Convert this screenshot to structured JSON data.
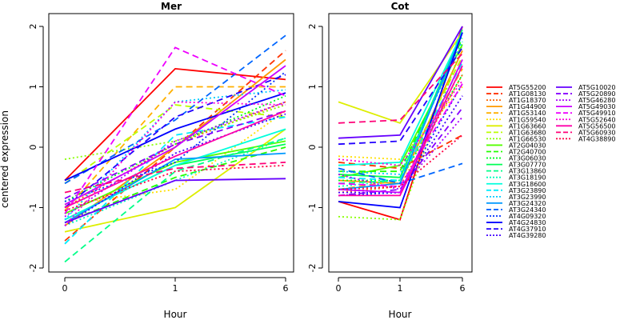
{
  "chart_data": {
    "type": "line",
    "ylabel": "centered expression",
    "xlabel": "Hour",
    "x": [
      "0",
      "1",
      "6"
    ],
    "ylim": [
      -2,
      2
    ],
    "yticks": [
      -2,
      -1,
      0,
      1,
      2
    ],
    "panels": [
      {
        "title": "Mer",
        "xlabel": "Hour",
        "values": {
          "AT5G55200": [
            -0.55,
            1.3,
            1.12
          ],
          "AT1G08130": [
            -1.55,
            0.0,
            1.6
          ],
          "AT1G18370": [
            -1.0,
            0.05,
            0.75
          ],
          "AT1G44900": [
            -1.3,
            0.0,
            1.45
          ],
          "AT1G53140": [
            -1.05,
            1.0,
            1.0
          ],
          "AT1G59540": [
            -0.95,
            -0.7,
            0.6
          ],
          "AT1G63660": [
            -1.4,
            -1.0,
            0.3
          ],
          "AT1G63680": [
            -0.6,
            0.7,
            0.5
          ],
          "AT1G66530": [
            -0.2,
            0.1,
            0.7
          ],
          "AT2G04030": [
            -1.1,
            -0.25,
            0.1
          ],
          "AT2G40700": [
            -1.25,
            -0.5,
            0.0
          ],
          "AT3G06030": [
            -0.9,
            0.05,
            0.85
          ],
          "AT3G07770": [
            -1.2,
            -0.3,
            0.05
          ],
          "AT3G13860": [
            -1.9,
            -0.4,
            0.15
          ],
          "AT3G18190": [
            -1.3,
            -0.55,
            0.15
          ],
          "AT3G18600": [
            -1.2,
            -0.3,
            0.3
          ],
          "AT3G23890": [
            -1.6,
            0.2,
            0.5
          ],
          "AT3G23990": [
            -1.2,
            0.75,
            0.95
          ],
          "AT3G24320": [
            -1.25,
            -0.2,
            -0.1
          ],
          "AT3G24340": [
            -0.6,
            0.45,
            1.85
          ],
          "AT4G09320": [
            -0.9,
            -0.25,
            1.25
          ],
          "AT4G24830": [
            -0.55,
            0.3,
            0.9
          ],
          "AT4G37910": [
            -1.0,
            0.5,
            1.2
          ],
          "AT4G39280": [
            -1.3,
            -0.1,
            0.55
          ],
          "AT5G10020": [
            -1.25,
            -0.55,
            -0.52
          ],
          "AT5G20890": [
            -0.85,
            0.05,
            0.6
          ],
          "AT5G46280": [
            -1.15,
            0.1,
            0.75
          ],
          "AT5G49030": [
            -0.95,
            0.0,
            1.35
          ],
          "AT5G49910": [
            -1.1,
            1.65,
            0.85
          ],
          "AT5G52640": [
            -1.3,
            0.75,
            0.7
          ],
          "AT5G56500": [
            -1.0,
            -0.15,
            0.6
          ],
          "AT5G60930": [
            -0.75,
            -0.35,
            -0.25
          ],
          "AT4G38890": [
            -1.05,
            -0.4,
            -0.3
          ]
        }
      },
      {
        "title": "Cot",
        "xlabel": "Hour",
        "values": {
          "AT5G55200": [
            -0.9,
            -1.2,
            2.0
          ],
          "AT1G08130": [
            -0.25,
            -0.35,
            0.2
          ],
          "AT1G18370": [
            -0.75,
            -0.65,
            1.2
          ],
          "AT1G44900": [
            -0.55,
            -0.6,
            1.6
          ],
          "AT1G53140": [
            -0.7,
            -0.55,
            1.3
          ],
          "AT1G59540": [
            -0.15,
            -0.2,
            1.0
          ],
          "AT1G63660": [
            0.75,
            0.4,
            1.9
          ],
          "AT1G63680": [
            -0.45,
            -0.5,
            1.5
          ],
          "AT1G66530": [
            -1.15,
            -1.2,
            1.7
          ],
          "AT2G04030": [
            -0.5,
            -0.3,
            1.7
          ],
          "AT2G40700": [
            -0.4,
            -0.4,
            1.8
          ],
          "AT3G06030": [
            -0.55,
            -0.55,
            1.2
          ],
          "AT3G07770": [
            -0.45,
            -0.5,
            1.9
          ],
          "AT3G13860": [
            -0.6,
            -0.55,
            1.95
          ],
          "AT3G18190": [
            -0.65,
            -0.55,
            1.85
          ],
          "AT3G18600": [
            -0.3,
            -0.25,
            1.9
          ],
          "AT3G23890": [
            -0.5,
            -0.55,
            1.4
          ],
          "AT3G23990": [
            -0.4,
            -0.45,
            1.75
          ],
          "AT3G24320": [
            -0.7,
            -0.6,
            1.9
          ],
          "AT3G24340": [
            -0.35,
            -0.6,
            -0.27
          ],
          "AT4G09320": [
            -0.8,
            -0.75,
            1.05
          ],
          "AT4G24830": [
            -0.9,
            -1.0,
            1.9
          ],
          "AT4G37910": [
            0.05,
            0.1,
            1.65
          ],
          "AT4G39280": [
            -0.75,
            -0.75,
            0.85
          ],
          "AT5G10020": [
            0.15,
            0.2,
            2.0
          ],
          "AT5G20890": [
            -0.8,
            -0.7,
            0.65
          ],
          "AT5G46280": [
            -0.45,
            -0.7,
            0.5
          ],
          "AT5G49030": [
            -0.7,
            -0.75,
            1.45
          ],
          "AT5G49910": [
            -0.6,
            -0.65,
            1.05
          ],
          "AT5G52640": [
            -0.2,
            -0.3,
            1.1
          ],
          "AT5G56500": [
            -0.8,
            -0.8,
            1.35
          ],
          "AT5G60930": [
            0.4,
            0.45,
            1.55
          ],
          "AT4G38890": [
            -0.7,
            -0.65,
            0.2
          ]
        }
      }
    ],
    "legend_position": "right",
    "series": [
      {
        "name": "AT5G55200",
        "color": "#ff0000",
        "dash": "solid"
      },
      {
        "name": "AT1G08130",
        "color": "#ff3300",
        "dash": "dashed"
      },
      {
        "name": "AT1G18370",
        "color": "#ff6600",
        "dash": "dotted"
      },
      {
        "name": "AT1G44900",
        "color": "#ff9900",
        "dash": "solid"
      },
      {
        "name": "AT1G53140",
        "color": "#ffb000",
        "dash": "dashed"
      },
      {
        "name": "AT1G59540",
        "color": "#ffe000",
        "dash": "dotted"
      },
      {
        "name": "AT1G63660",
        "color": "#ddee00",
        "dash": "solid"
      },
      {
        "name": "AT1G63680",
        "color": "#bbff00",
        "dash": "dashed"
      },
      {
        "name": "AT1G66530",
        "color": "#88ff00",
        "dash": "dotted"
      },
      {
        "name": "AT2G04030",
        "color": "#55ff00",
        "dash": "solid"
      },
      {
        "name": "AT2G40700",
        "color": "#22ff00",
        "dash": "dashed"
      },
      {
        "name": "AT3G06030",
        "color": "#00ff22",
        "dash": "dotted"
      },
      {
        "name": "AT3G07770",
        "color": "#00ff55",
        "dash": "solid"
      },
      {
        "name": "AT3G13860",
        "color": "#00ff88",
        "dash": "dashed"
      },
      {
        "name": "AT3G18190",
        "color": "#00ffbb",
        "dash": "dotted"
      },
      {
        "name": "AT3G18600",
        "color": "#00ffdd",
        "dash": "solid"
      },
      {
        "name": "AT3G23890",
        "color": "#00eeff",
        "dash": "dashed"
      },
      {
        "name": "AT3G23990",
        "color": "#00ccff",
        "dash": "dotted"
      },
      {
        "name": "AT3G24320",
        "color": "#0099ff",
        "dash": "solid"
      },
      {
        "name": "AT3G24340",
        "color": "#0066ff",
        "dash": "dashed"
      },
      {
        "name": "AT4G09320",
        "color": "#0033ff",
        "dash": "dotted"
      },
      {
        "name": "AT4G24830",
        "color": "#0000ff",
        "dash": "solid"
      },
      {
        "name": "AT4G37910",
        "color": "#2200ff",
        "dash": "dashed"
      },
      {
        "name": "AT4G39280",
        "color": "#4400ff",
        "dash": "dotted"
      },
      {
        "name": "AT5G10020",
        "color": "#6600ff",
        "dash": "solid"
      },
      {
        "name": "AT5G20890",
        "color": "#8800ff",
        "dash": "dashed"
      },
      {
        "name": "AT5G46280",
        "color": "#aa00ff",
        "dash": "dotted"
      },
      {
        "name": "AT5G49030",
        "color": "#cc00ff",
        "dash": "solid"
      },
      {
        "name": "AT5G49910",
        "color": "#ee00ff",
        "dash": "dashed"
      },
      {
        "name": "AT5G52640",
        "color": "#ff00dd",
        "dash": "dotted"
      },
      {
        "name": "AT5G56500",
        "color": "#ff00aa",
        "dash": "solid"
      },
      {
        "name": "AT5G60930",
        "color": "#ff0077",
        "dash": "dashed"
      },
      {
        "name": "AT4G38890",
        "color": "#ff0044",
        "dash": "dotted"
      }
    ]
  }
}
